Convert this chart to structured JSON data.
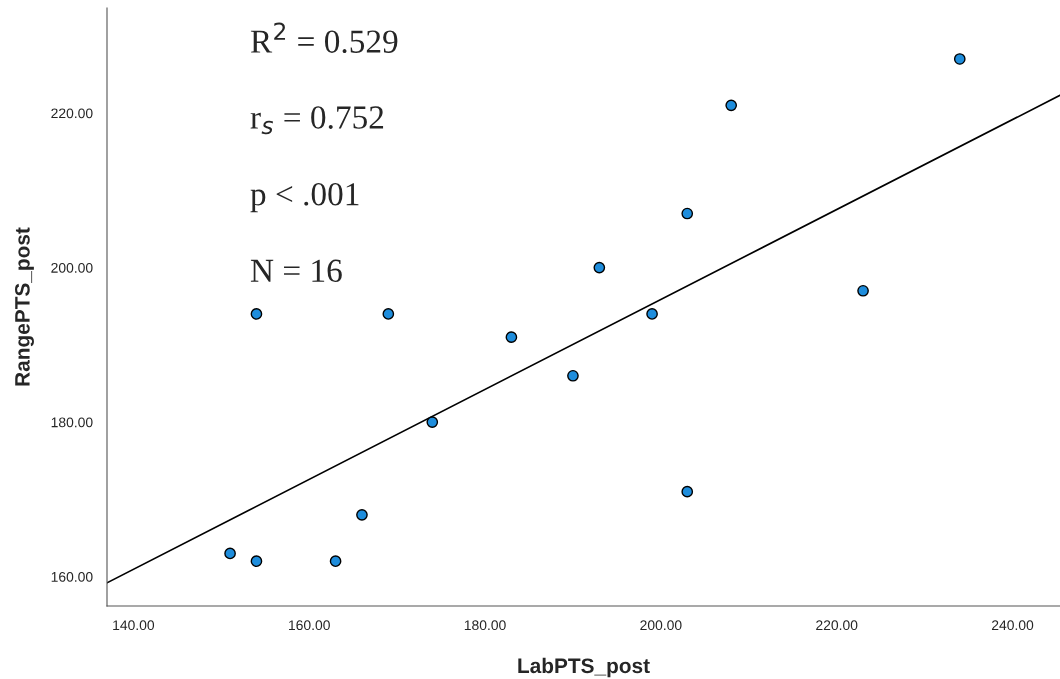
{
  "chart_data": {
    "type": "scatter",
    "xlabel": "LabPTS_post",
    "ylabel": "RangePTS_post",
    "xlim": [
      137,
      245.4
    ],
    "ylim": [
      156.2,
      233.6
    ],
    "xticks": [
      {
        "value": 140,
        "label": "140.00"
      },
      {
        "value": 160,
        "label": "160.00"
      },
      {
        "value": 180,
        "label": "180.00"
      },
      {
        "value": 200,
        "label": "200.00"
      },
      {
        "value": 220,
        "label": "220.00"
      },
      {
        "value": 240,
        "label": "240.00"
      }
    ],
    "yticks": [
      {
        "value": 160,
        "label": "160.00"
      },
      {
        "value": 180,
        "label": "180.00"
      },
      {
        "value": 200,
        "label": "200.00"
      },
      {
        "value": 220,
        "label": "220.00"
      }
    ],
    "grid": false,
    "legend": false,
    "series": [
      {
        "marker": "circle",
        "color": "#1e8ddc",
        "x": [
          151,
          154,
          154,
          163,
          166,
          169,
          174,
          183,
          190,
          193,
          199,
          203,
          203,
          208,
          223,
          234
        ],
        "values": [
          163,
          162,
          194,
          162,
          168,
          194,
          180,
          191,
          186,
          200,
          194,
          207,
          171,
          221,
          197,
          227
        ]
      },
      {
        "type": "line",
        "color": "#000000",
        "x": [
          137,
          245.4
        ],
        "values": [
          159.2,
          222.3
        ]
      }
    ],
    "annotations": [
      "R$^{2}$ = 0.529",
      "r$_{s}$ = 0.752",
      "p < .001",
      "N = 16"
    ]
  }
}
